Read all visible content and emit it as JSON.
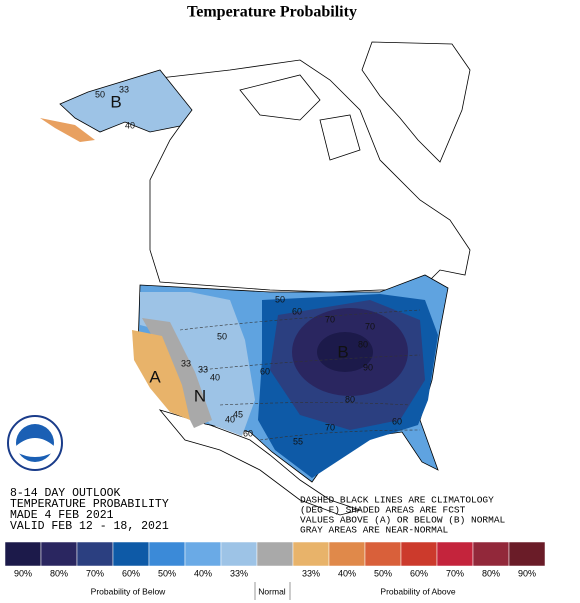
{
  "header": {
    "title": "Temperature Probability"
  },
  "map": {
    "labels": [
      "B",
      "40",
      "50",
      "33",
      "B",
      "40",
      "50",
      "33",
      "33",
      "A",
      "N",
      "40",
      "45",
      "60",
      "50",
      "60",
      "70",
      "80",
      "90",
      "80",
      "70",
      "60",
      "55",
      "60",
      "70"
    ]
  },
  "info": [
    "8-14 DAY OUTLOOK",
    "TEMPERATURE PROBABILITY",
    "MADE  4 FEB 2021",
    "VALID  FEB 12 - 18, 2021"
  ],
  "notes": [
    "DASHED BLACK LINES ARE CLIMATOLOGY",
    "(DEG F) SHADED AREAS ARE FCST",
    "VALUES ABOVE (A) OR BELOW (B) NORMAL",
    "GRAY AREAS ARE NEAR-NORMAL"
  ],
  "legend": {
    "items": [
      {
        "color": "#1c1a4a",
        "label": "90%"
      },
      {
        "color": "#2a2660",
        "label": "80%"
      },
      {
        "color": "#2b3f80",
        "label": "70%"
      },
      {
        "color": "#0e5aa7",
        "label": "60%"
      },
      {
        "color": "#3b8ad8",
        "label": "50%"
      },
      {
        "color": "#6aaae6",
        "label": "40%"
      },
      {
        "color": "#9dc3e6",
        "label": "33%"
      },
      {
        "color": "#a9a9a9"
      },
      {
        "color": "#e8b36a",
        "label": "33%"
      },
      {
        "color": "#e0894a",
        "label": "40%"
      },
      {
        "color": "#d9603a",
        "label": "50%"
      },
      {
        "color": "#cc3a2c",
        "label": "60%"
      },
      {
        "color": "#c4243c",
        "label": "70%"
      },
      {
        "color": "#92283a",
        "label": "80%"
      },
      {
        "color": "#6a1c28",
        "label": "90%"
      }
    ]
  },
  "footer": {
    "below": "Probability of Below",
    "normal": "Normal",
    "above": "Probability of Above"
  }
}
